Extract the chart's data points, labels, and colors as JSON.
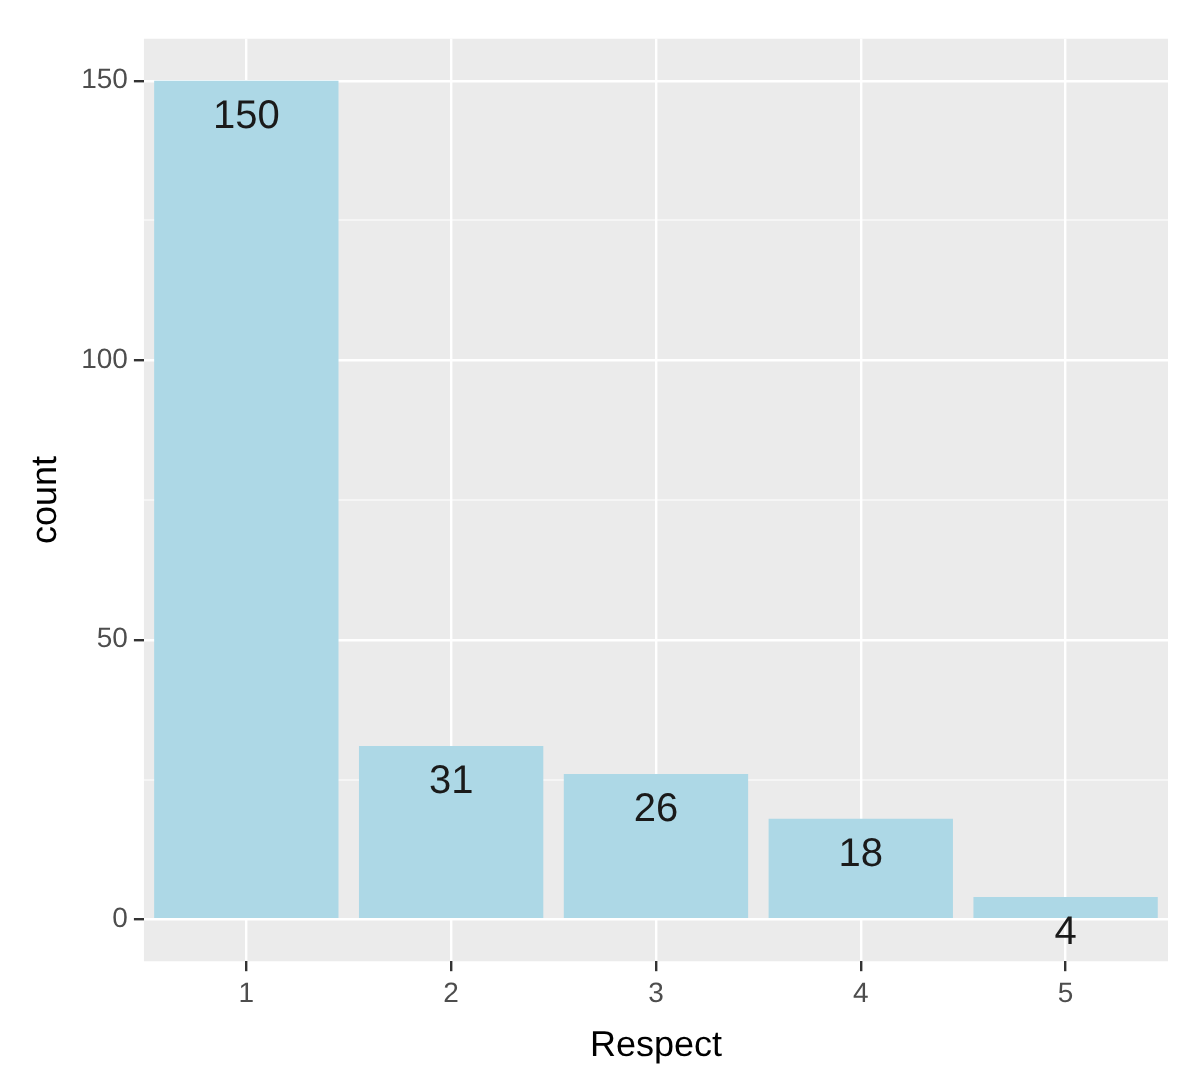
{
  "chart_data": {
    "type": "bar",
    "xlabel": "Respect",
    "ylabel": "count",
    "categories": [
      "1",
      "2",
      "3",
      "4",
      "5"
    ],
    "values": [
      150,
      31,
      26,
      18,
      4
    ],
    "color": "#add8e6",
    "ylim": [
      -7.5,
      157.5
    ],
    "yticks": [
      0,
      {
        "value": 25,
        "label": null
      },
      50,
      {
        "value": 75,
        "label": null
      },
      100,
      {
        "value": 125,
        "label": null
      },
      150
    ],
    "grid": true,
    "data_labels": true
  }
}
